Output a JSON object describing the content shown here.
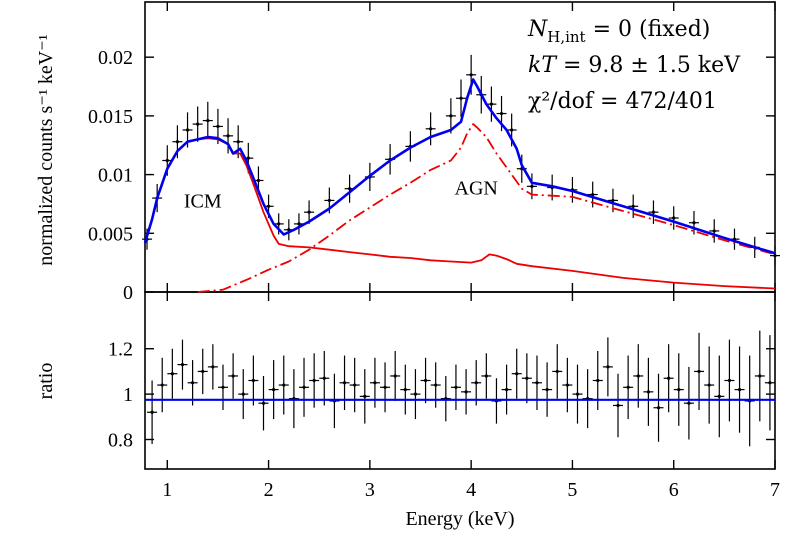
{
  "chart_data": [
    {
      "type": "line",
      "panel": "spectrum",
      "ylabel": "normalized counts s⁻¹ keV⁻¹",
      "xlim": [
        0.78,
        7.0
      ],
      "ylim": [
        0,
        0.0247
      ],
      "y_ticks": [
        0,
        0.005,
        0.01,
        0.015,
        0.02
      ],
      "y_tick_labels": [
        "0",
        "0.005",
        "0.01",
        "0.015",
        "0.02"
      ],
      "annotations": [
        {
          "text": "ICM",
          "x": 1.35,
          "y": 0.0072
        },
        {
          "text": "AGN",
          "x": 4.05,
          "y": 0.0083
        }
      ],
      "fit_stats": [
        {
          "main": "N",
          "sub": "H,int",
          "rest": " = 0    (fixed)"
        },
        {
          "main": "kT",
          "sub": "",
          "rest": " = 9.8 ± 1.5  keV"
        },
        {
          "main": "χ²/dof",
          "sub": "",
          "rest": " = 472/401"
        }
      ],
      "series": [
        {
          "name": "",
          "kind": "data",
          "color": "#000000",
          "x": [
            0.8,
            0.9,
            1.0,
            1.1,
            1.2,
            1.3,
            1.4,
            1.5,
            1.6,
            1.7,
            1.8,
            1.9,
            2.0,
            2.1,
            2.2,
            2.3,
            2.4,
            2.6,
            2.8,
            3.0,
            3.2,
            3.4,
            3.6,
            3.8,
            3.9,
            4.0,
            4.1,
            4.2,
            4.3,
            4.4,
            4.5,
            4.6,
            4.8,
            5.0,
            5.2,
            5.4,
            5.6,
            5.8,
            6.0,
            6.2,
            6.4,
            6.6,
            6.8,
            7.0
          ],
          "y": [
            0.0045,
            0.008,
            0.0112,
            0.0128,
            0.0138,
            0.0143,
            0.0146,
            0.0141,
            0.0133,
            0.0128,
            0.0114,
            0.0095,
            0.0073,
            0.0058,
            0.0053,
            0.0058,
            0.0068,
            0.0078,
            0.0088,
            0.0098,
            0.0113,
            0.0124,
            0.0139,
            0.015,
            0.0165,
            0.0185,
            0.0168,
            0.016,
            0.0152,
            0.0138,
            0.0105,
            0.009,
            0.0089,
            0.0087,
            0.0083,
            0.0078,
            0.0073,
            0.0068,
            0.0063,
            0.0059,
            0.0052,
            0.0045,
            0.0038,
            0.0031
          ],
          "err": [
            0.0009,
            0.0012,
            0.0013,
            0.0014,
            0.0015,
            0.0015,
            0.0016,
            0.0015,
            0.0015,
            0.0014,
            0.0013,
            0.0012,
            0.001,
            0.0009,
            0.0009,
            0.0009,
            0.001,
            0.0011,
            0.0012,
            0.0012,
            0.0013,
            0.0013,
            0.0014,
            0.0015,
            0.0016,
            0.0017,
            0.0016,
            0.0015,
            0.0015,
            0.0014,
            0.0012,
            0.0011,
            0.0011,
            0.0011,
            0.0011,
            0.001,
            0.001,
            0.001,
            0.001,
            0.001,
            0.001,
            0.0009,
            0.0009,
            0.0008
          ]
        },
        {
          "name": "",
          "kind": "total-model",
          "color": "#0000ee",
          "x": [
            0.78,
            0.85,
            0.9,
            1.0,
            1.1,
            1.2,
            1.3,
            1.4,
            1.5,
            1.6,
            1.65,
            1.72,
            1.78,
            1.85,
            1.95,
            2.05,
            2.15,
            2.25,
            2.4,
            2.6,
            2.8,
            3.0,
            3.2,
            3.4,
            3.6,
            3.8,
            3.9,
            3.96,
            4.02,
            4.06,
            4.15,
            4.25,
            4.35,
            4.45,
            4.5,
            4.6,
            4.8,
            5.0,
            5.5,
            6.0,
            6.5,
            7.0
          ],
          "y": [
            0.0042,
            0.0062,
            0.008,
            0.0105,
            0.012,
            0.0128,
            0.013,
            0.0132,
            0.0131,
            0.0126,
            0.0118,
            0.0122,
            0.0112,
            0.0097,
            0.0075,
            0.0058,
            0.0049,
            0.0053,
            0.006,
            0.0071,
            0.0085,
            0.0099,
            0.0112,
            0.0123,
            0.0132,
            0.0138,
            0.0145,
            0.0165,
            0.0181,
            0.0175,
            0.016,
            0.0148,
            0.0138,
            0.0122,
            0.0108,
            0.0093,
            0.009,
            0.0086,
            0.0073,
            0.006,
            0.0046,
            0.0033
          ]
        },
        {
          "name": "",
          "kind": "icm-model",
          "color": "#ee0000",
          "dash": "solid",
          "x": [
            0.78,
            0.85,
            0.9,
            1.0,
            1.1,
            1.2,
            1.3,
            1.4,
            1.5,
            1.6,
            1.65,
            1.72,
            1.78,
            1.85,
            1.95,
            2.05,
            2.1,
            2.2,
            2.4,
            2.6,
            2.8,
            3.0,
            3.2,
            3.4,
            3.6,
            3.8,
            4.0,
            4.1,
            4.18,
            4.25,
            4.35,
            4.45,
            4.6,
            5.0,
            5.5,
            6.0,
            6.5,
            7.0
          ],
          "y": [
            0.0042,
            0.0062,
            0.008,
            0.0105,
            0.012,
            0.0128,
            0.013,
            0.0131,
            0.013,
            0.0126,
            0.0118,
            0.0118,
            0.0108,
            0.0092,
            0.0068,
            0.0048,
            0.0041,
            0.0039,
            0.0038,
            0.0036,
            0.0034,
            0.0032,
            0.003,
            0.0029,
            0.0027,
            0.0026,
            0.0025,
            0.0027,
            0.0032,
            0.0031,
            0.0028,
            0.0024,
            0.0022,
            0.0018,
            0.0012,
            0.0008,
            0.0005,
            0.0003
          ]
        },
        {
          "name": "",
          "kind": "agn-model",
          "color": "#ee0000",
          "dash": "dashdot",
          "x": [
            1.3,
            1.55,
            1.8,
            2.0,
            2.2,
            2.4,
            2.6,
            2.8,
            3.0,
            3.2,
            3.4,
            3.6,
            3.8,
            3.9,
            3.96,
            4.02,
            4.06,
            4.15,
            4.25,
            4.35,
            4.45,
            4.5,
            4.6,
            4.8,
            5.0,
            5.5,
            6.0,
            6.5,
            7.0
          ],
          "y": [
            0.0,
            0.0002,
            0.0011,
            0.0019,
            0.0026,
            0.0036,
            0.0048,
            0.0061,
            0.0072,
            0.0083,
            0.0093,
            0.0104,
            0.0112,
            0.0123,
            0.0135,
            0.0143,
            0.014,
            0.0132,
            0.0118,
            0.0106,
            0.0094,
            0.0088,
            0.0083,
            0.0082,
            0.0081,
            0.0069,
            0.0057,
            0.0044,
            0.0032
          ]
        }
      ]
    },
    {
      "type": "scatter",
      "panel": "ratio",
      "xlabel": "Energy (keV)",
      "ylabel": "ratio",
      "xlim": [
        0.78,
        7.0
      ],
      "ylim": [
        0.67,
        1.45
      ],
      "x_ticks": [
        1,
        2,
        3,
        4,
        5,
        6,
        7
      ],
      "x_tick_labels": [
        "1",
        "2",
        "3",
        "4",
        "5",
        "6",
        "7"
      ],
      "y_ticks": [
        0.8,
        1.0,
        1.2
      ],
      "y_tick_labels": [
        "0.8",
        "1",
        "1.2"
      ],
      "reference_line": {
        "y": 0.975,
        "color": "#0000ee"
      },
      "series": [
        {
          "name": "",
          "color": "#000000",
          "x": [
            0.85,
            0.95,
            1.05,
            1.15,
            1.25,
            1.35,
            1.45,
            1.55,
            1.65,
            1.75,
            1.85,
            1.95,
            2.05,
            2.15,
            2.25,
            2.35,
            2.45,
            2.55,
            2.65,
            2.75,
            2.85,
            2.95,
            3.05,
            3.15,
            3.25,
            3.35,
            3.45,
            3.55,
            3.65,
            3.75,
            3.85,
            3.95,
            4.05,
            4.15,
            4.25,
            4.35,
            4.45,
            4.55,
            4.65,
            4.75,
            4.85,
            4.95,
            5.05,
            5.15,
            5.25,
            5.35,
            5.45,
            5.55,
            5.65,
            5.75,
            5.85,
            5.95,
            6.05,
            6.15,
            6.25,
            6.35,
            6.45,
            6.55,
            6.65,
            6.75,
            6.85,
            6.95
          ],
          "y": [
            0.92,
            1.04,
            1.09,
            1.13,
            1.05,
            1.1,
            1.12,
            1.03,
            1.08,
            1.0,
            1.06,
            0.96,
            1.02,
            1.04,
            0.98,
            1.03,
            1.06,
            1.07,
            0.97,
            1.05,
            1.04,
            0.99,
            1.05,
            1.03,
            1.08,
            1.02,
            1.0,
            1.06,
            1.04,
            0.98,
            1.03,
            1.01,
            1.05,
            1.08,
            0.97,
            1.02,
            1.09,
            1.07,
            1.05,
            1.02,
            1.1,
            1.04,
            1.0,
            0.98,
            1.06,
            1.12,
            0.95,
            1.03,
            1.08,
            1.01,
            0.94,
            1.07,
            1.02,
            0.96,
            1.1,
            1.04,
            0.99,
            1.06,
            1.02,
            0.97,
            1.08,
            1.05
          ],
          "err": [
            0.14,
            0.12,
            0.11,
            0.11,
            0.1,
            0.1,
            0.1,
            0.1,
            0.1,
            0.11,
            0.11,
            0.12,
            0.13,
            0.13,
            0.13,
            0.13,
            0.12,
            0.12,
            0.12,
            0.12,
            0.12,
            0.12,
            0.11,
            0.11,
            0.11,
            0.11,
            0.11,
            0.1,
            0.1,
            0.1,
            0.1,
            0.1,
            0.1,
            0.1,
            0.1,
            0.11,
            0.11,
            0.11,
            0.12,
            0.12,
            0.12,
            0.12,
            0.13,
            0.13,
            0.13,
            0.13,
            0.14,
            0.14,
            0.14,
            0.15,
            0.15,
            0.15,
            0.16,
            0.16,
            0.17,
            0.17,
            0.18,
            0.18,
            0.19,
            0.2,
            0.2,
            0.21
          ]
        }
      ]
    }
  ]
}
